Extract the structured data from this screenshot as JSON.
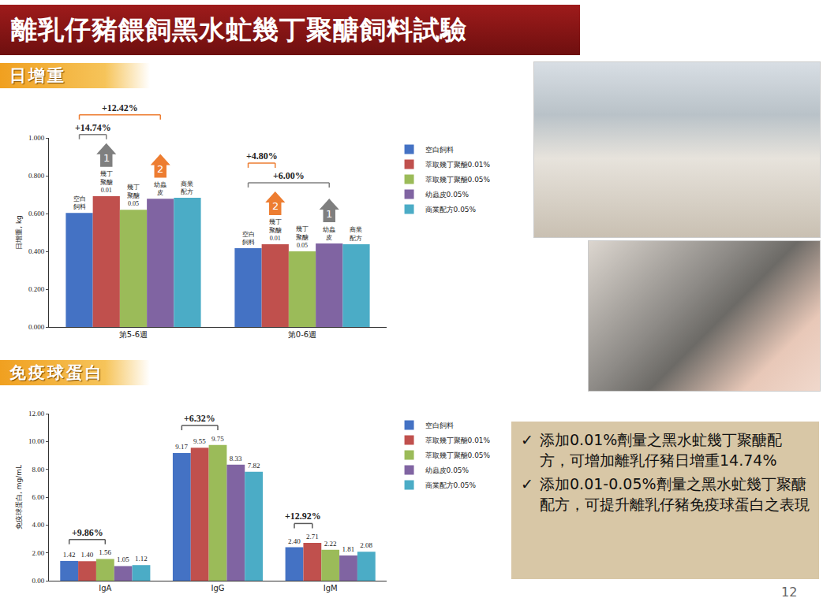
{
  "header": {
    "title": "離乳仔豬餵飼黑水虻幾丁聚醣飼料試驗"
  },
  "chart_data": [
    {
      "type": "bar",
      "title": "日增重",
      "y_label": "日增重, kg",
      "categories": [
        "第5-6週",
        "第0-6週"
      ],
      "series": [
        {
          "name": "空白飼料",
          "color": "#4472c4",
          "values": [
            0.603,
            0.417
          ],
          "bar_label": "空白飼料"
        },
        {
          "name": "萃取幾丁聚醣0.01%",
          "color": "#c0504d",
          "values": [
            0.692,
            0.437
          ],
          "bar_label": "幾丁聚醣0.01"
        },
        {
          "name": "萃取幾丁聚醣0.05%",
          "color": "#9bbb59",
          "values": [
            0.62,
            0.4
          ],
          "bar_label": "幾丁聚醣0.05"
        },
        {
          "name": "幼蟲皮0.05%",
          "color": "#8064a2",
          "values": [
            0.678,
            0.442
          ],
          "bar_label": "幼蟲皮"
        },
        {
          "name": "商業配方0.05%",
          "color": "#4bacc6",
          "values": [
            0.683,
            0.438
          ],
          "bar_label": "商業配方"
        }
      ],
      "ylim": [
        0,
        1
      ],
      "yticks": [
        {
          "value": 0,
          "label": "0.000"
        },
        {
          "value": 0.2,
          "label": "0.200"
        },
        {
          "value": 0.4,
          "label": "0.400"
        },
        {
          "value": 0.6,
          "label": "0.600"
        },
        {
          "value": 0.8,
          "label": "0.800"
        },
        {
          "value": 1,
          "label": "1.000"
        }
      ],
      "grid": false,
      "legend": "right",
      "data_labels": false,
      "ranks": [
        {
          "category": 0,
          "series": 1,
          "text": "1",
          "color": "#7f7f7f"
        },
        {
          "category": 0,
          "series": 3,
          "text": "2",
          "color": "#ed7d31"
        },
        {
          "category": 1,
          "series": 1,
          "text": "2",
          "color": "#ed7d31"
        },
        {
          "category": 1,
          "series": 3,
          "text": "1",
          "color": "#7f7f7f"
        }
      ],
      "brackets": [
        {
          "category": 0,
          "from_series": 0,
          "to_series": 1,
          "text": "+14.74%",
          "color": "#7f7f7f"
        },
        {
          "category": 0,
          "from_series": 0,
          "to_series": 3,
          "text": "+12.42%",
          "color": "#ed7d31"
        },
        {
          "category": 1,
          "from_series": 0,
          "to_series": 3,
          "text": "+6.00%",
          "color": "#7f7f7f"
        },
        {
          "category": 1,
          "from_series": 0,
          "to_series": 1,
          "text": "+4.80%",
          "color": "#ed7d31"
        }
      ]
    },
    {
      "type": "bar",
      "title": "免疫球蛋白",
      "y_label": "免疫球蛋白, mg/mL",
      "categories": [
        "IgA",
        "IgG",
        "IgM"
      ],
      "series": [
        {
          "name": "空白飼料",
          "color": "#4472c4",
          "values": [
            1.42,
            9.17,
            2.4
          ],
          "value_labels": [
            "1.42",
            "9.17",
            "2.40"
          ]
        },
        {
          "name": "萃取幾丁聚醣0.01%",
          "color": "#c0504d",
          "values": [
            1.4,
            9.55,
            2.71
          ],
          "value_labels": [
            "1.40",
            "9.55",
            "2.71"
          ]
        },
        {
          "name": "萃取幾丁聚醣0.05%",
          "color": "#9bbb59",
          "values": [
            1.56,
            9.75,
            2.22
          ],
          "value_labels": [
            "1.56",
            "9.75",
            "2.22"
          ]
        },
        {
          "name": "幼蟲皮0.05%",
          "color": "#8064a2",
          "values": [
            1.05,
            8.33,
            1.81
          ],
          "value_labels": [
            "1.05",
            "8.33",
            "1.81"
          ]
        },
        {
          "name": "商業配方0.05%",
          "color": "#4bacc6",
          "values": [
            1.12,
            7.82,
            2.08
          ],
          "value_labels": [
            "1.12",
            "7.82",
            "2.08"
          ]
        }
      ],
      "ylim": [
        0,
        12
      ],
      "yticks": [
        {
          "value": 0,
          "label": "0.00"
        },
        {
          "value": 2,
          "label": "2.00"
        },
        {
          "value": 4,
          "label": "4.00"
        },
        {
          "value": 6,
          "label": "6.00"
        },
        {
          "value": 8,
          "label": "8.00"
        },
        {
          "value": 10,
          "label": "10.00"
        },
        {
          "value": 12,
          "label": "12.00"
        }
      ],
      "grid": false,
      "legend": "right",
      "data_labels": true,
      "ranks": [],
      "brackets": [
        {
          "category": 0,
          "from_series": 0,
          "to_series": 2,
          "text": "+9.86%",
          "color": "#595959"
        },
        {
          "category": 1,
          "from_series": 0,
          "to_series": 2,
          "text": "+6.32%",
          "color": "#595959"
        },
        {
          "category": 2,
          "from_series": 0,
          "to_series": 1,
          "text": "+12.92%",
          "color": "#595959"
        }
      ]
    }
  ],
  "notes": {
    "bullet": "✓",
    "items": [
      "添加0.01%劑量之黑水虻幾丁聚醣配方，可增加離乳仔豬日增重14.74%",
      "添加0.01-0.05%劑量之黑水虻幾丁聚醣配方，可提升離乳仔豬免疫球蛋白之表現"
    ]
  },
  "page_number": 12
}
